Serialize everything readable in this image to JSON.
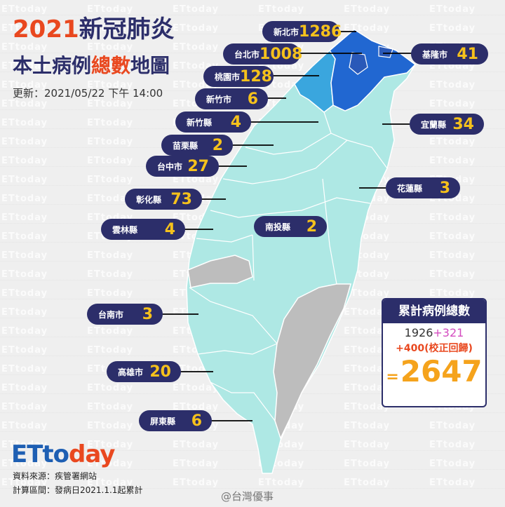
{
  "header": {
    "title_year": "2021",
    "title_rest": "新冠肺炎",
    "subtitle_pre": "本土病例",
    "subtitle_highlight": "總數",
    "subtitle_post": "地圖",
    "updated": "更新：2021/05/22 下午 14:00"
  },
  "watermark_text": "ETtoday",
  "regions": [
    {
      "name": "新北市",
      "count": "1286"
    },
    {
      "name": "台北市",
      "count": "1008"
    },
    {
      "name": "基隆市",
      "count": "41"
    },
    {
      "name": "桃園市",
      "count": "128"
    },
    {
      "name": "新竹市",
      "count": "6"
    },
    {
      "name": "新竹縣",
      "count": "4"
    },
    {
      "name": "宜蘭縣",
      "count": "34"
    },
    {
      "name": "苗栗縣",
      "count": "2"
    },
    {
      "name": "台中市",
      "count": "27"
    },
    {
      "name": "花蓮縣",
      "count": "3"
    },
    {
      "name": "彰化縣",
      "count": "73"
    },
    {
      "name": "南投縣",
      "count": "2"
    },
    {
      "name": "雲林縣",
      "count": "4"
    },
    {
      "name": "台南市",
      "count": "3"
    },
    {
      "name": "高雄市",
      "count": "20"
    },
    {
      "name": "屏東縣",
      "count": "6"
    }
  ],
  "summary": {
    "heading": "累計病例總數",
    "base": "1926",
    "plus1": "+321",
    "plus2": "+400(校正回歸)",
    "eq": "=",
    "total": "2647"
  },
  "footer": {
    "logo_a": "ETto",
    "logo_b": "day",
    "source": "資料來源：疾管署網站",
    "period": "計算區間：發病日2021.1.1起累計",
    "credit": "@台灣優事"
  },
  "colors": {
    "dark_navy": "#2c2e6a",
    "accent_orange": "#e9481f",
    "count_yellow": "#f5c11c",
    "map_light": "#aee8e4",
    "map_mid": "#3aa6de",
    "map_dark": "#2167d1",
    "map_zero": "#bdbdbd"
  }
}
